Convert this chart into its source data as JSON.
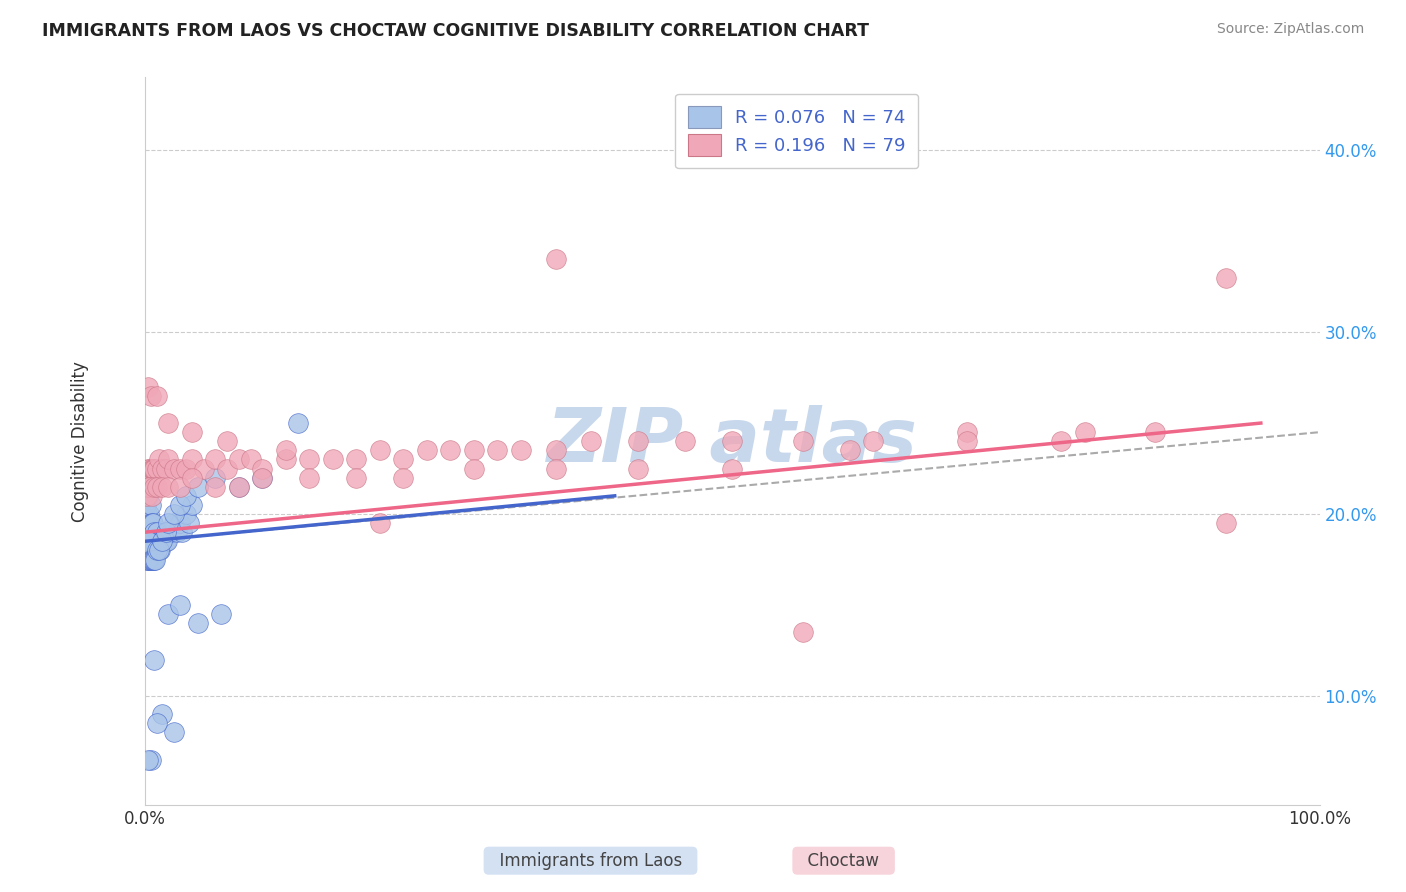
{
  "title": "IMMIGRANTS FROM LAOS VS CHOCTAW COGNITIVE DISABILITY CORRELATION CHART",
  "source_text": "Source: ZipAtlas.com",
  "ylabel": "Cognitive Disability",
  "xlim": [
    0.0,
    1.0
  ],
  "ylim": [
    0.04,
    0.44
  ],
  "ytick_values": [
    0.1,
    0.2,
    0.3,
    0.4
  ],
  "color_blue": "#A8C4E8",
  "color_pink": "#F0A8B8",
  "color_blue_line": "#4466CC",
  "color_pink_line": "#EE6688",
  "color_dashed_grid": "#CCCCCC",
  "watermark_color": "#C8D8EC",
  "blue_scatter_x": [
    0.001,
    0.001,
    0.001,
    0.002,
    0.002,
    0.002,
    0.003,
    0.003,
    0.003,
    0.004,
    0.004,
    0.005,
    0.005,
    0.005,
    0.006,
    0.006,
    0.007,
    0.007,
    0.008,
    0.008,
    0.009,
    0.01,
    0.01,
    0.011,
    0.012,
    0.013,
    0.014,
    0.015,
    0.016,
    0.018,
    0.019,
    0.02,
    0.022,
    0.025,
    0.027,
    0.03,
    0.032,
    0.035,
    0.038,
    0.04,
    0.002,
    0.002,
    0.003,
    0.003,
    0.004,
    0.004,
    0.005,
    0.006,
    0.007,
    0.008,
    0.009,
    0.01,
    0.012,
    0.015,
    0.018,
    0.02,
    0.025,
    0.03,
    0.035,
    0.045,
    0.06,
    0.08,
    0.1,
    0.13,
    0.02,
    0.03,
    0.045,
    0.065,
    0.015,
    0.025,
    0.01,
    0.008,
    0.005,
    0.003
  ],
  "blue_scatter_y": [
    0.195,
    0.205,
    0.215,
    0.19,
    0.2,
    0.21,
    0.185,
    0.195,
    0.21,
    0.19,
    0.2,
    0.185,
    0.195,
    0.205,
    0.185,
    0.195,
    0.185,
    0.195,
    0.18,
    0.19,
    0.18,
    0.18,
    0.19,
    0.185,
    0.185,
    0.18,
    0.185,
    0.185,
    0.185,
    0.185,
    0.185,
    0.19,
    0.19,
    0.195,
    0.19,
    0.195,
    0.19,
    0.2,
    0.195,
    0.205,
    0.175,
    0.185,
    0.175,
    0.185,
    0.175,
    0.18,
    0.175,
    0.175,
    0.175,
    0.175,
    0.175,
    0.18,
    0.18,
    0.185,
    0.19,
    0.195,
    0.2,
    0.205,
    0.21,
    0.215,
    0.22,
    0.215,
    0.22,
    0.25,
    0.145,
    0.15,
    0.14,
    0.145,
    0.09,
    0.08,
    0.085,
    0.12,
    0.065,
    0.065
  ],
  "pink_scatter_x": [
    0.001,
    0.002,
    0.003,
    0.004,
    0.005,
    0.006,
    0.007,
    0.008,
    0.01,
    0.012,
    0.015,
    0.018,
    0.02,
    0.025,
    0.03,
    0.035,
    0.04,
    0.05,
    0.06,
    0.07,
    0.08,
    0.09,
    0.1,
    0.12,
    0.14,
    0.16,
    0.18,
    0.2,
    0.22,
    0.24,
    0.26,
    0.28,
    0.3,
    0.32,
    0.35,
    0.38,
    0.42,
    0.46,
    0.5,
    0.56,
    0.62,
    0.7,
    0.78,
    0.86,
    0.92,
    0.002,
    0.003,
    0.004,
    0.006,
    0.008,
    0.01,
    0.015,
    0.02,
    0.03,
    0.04,
    0.06,
    0.08,
    0.1,
    0.14,
    0.18,
    0.22,
    0.28,
    0.35,
    0.42,
    0.5,
    0.6,
    0.7,
    0.8,
    0.92,
    0.003,
    0.005,
    0.01,
    0.02,
    0.04,
    0.07,
    0.12,
    0.2,
    0.35,
    0.56
  ],
  "pink_scatter_y": [
    0.215,
    0.22,
    0.225,
    0.225,
    0.22,
    0.225,
    0.225,
    0.225,
    0.225,
    0.23,
    0.225,
    0.225,
    0.23,
    0.225,
    0.225,
    0.225,
    0.23,
    0.225,
    0.23,
    0.225,
    0.23,
    0.23,
    0.225,
    0.23,
    0.23,
    0.23,
    0.23,
    0.235,
    0.23,
    0.235,
    0.235,
    0.235,
    0.235,
    0.235,
    0.235,
    0.24,
    0.24,
    0.24,
    0.24,
    0.24,
    0.24,
    0.245,
    0.24,
    0.245,
    0.33,
    0.21,
    0.215,
    0.215,
    0.21,
    0.215,
    0.215,
    0.215,
    0.215,
    0.215,
    0.22,
    0.215,
    0.215,
    0.22,
    0.22,
    0.22,
    0.22,
    0.225,
    0.225,
    0.225,
    0.225,
    0.235,
    0.24,
    0.245,
    0.195,
    0.27,
    0.265,
    0.265,
    0.25,
    0.245,
    0.24,
    0.235,
    0.195,
    0.34,
    0.135
  ],
  "blue_line_x": [
    0.0,
    0.4
  ],
  "blue_line_y": [
    0.185,
    0.21
  ],
  "pink_line_x": [
    0.0,
    0.95
  ],
  "pink_line_y": [
    0.19,
    0.25
  ],
  "dashed_line_x": [
    0.0,
    1.0
  ],
  "dashed_line_y": [
    0.185,
    0.245
  ]
}
